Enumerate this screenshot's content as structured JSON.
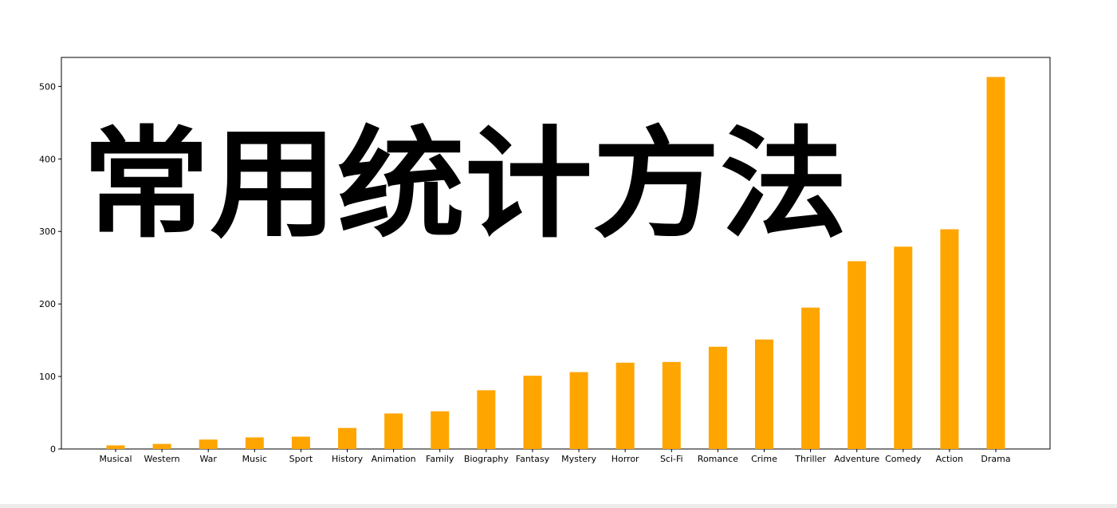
{
  "overlay_text": "常用统计方法",
  "colors": {
    "bar": "#ffa500",
    "axis": "#000000",
    "background": "#ffffff"
  },
  "chart_data": {
    "type": "bar",
    "categories": [
      "Musical",
      "Western",
      "War",
      "Music",
      "Sport",
      "History",
      "Animation",
      "Family",
      "Biography",
      "Fantasy",
      "Mystery",
      "Horror",
      "Sci-Fi",
      "Romance",
      "Crime",
      "Thriller",
      "Adventure",
      "Comedy",
      "Action",
      "Drama"
    ],
    "values": [
      5,
      7,
      13,
      16,
      17,
      29,
      49,
      52,
      81,
      101,
      106,
      119,
      120,
      141,
      151,
      195,
      259,
      279,
      303,
      513
    ],
    "title": "",
    "xlabel": "",
    "ylabel": "",
    "ylim": [
      0,
      540
    ],
    "yticks": [
      0,
      100,
      200,
      300,
      400,
      500
    ],
    "grid": false,
    "legend": "none"
  }
}
